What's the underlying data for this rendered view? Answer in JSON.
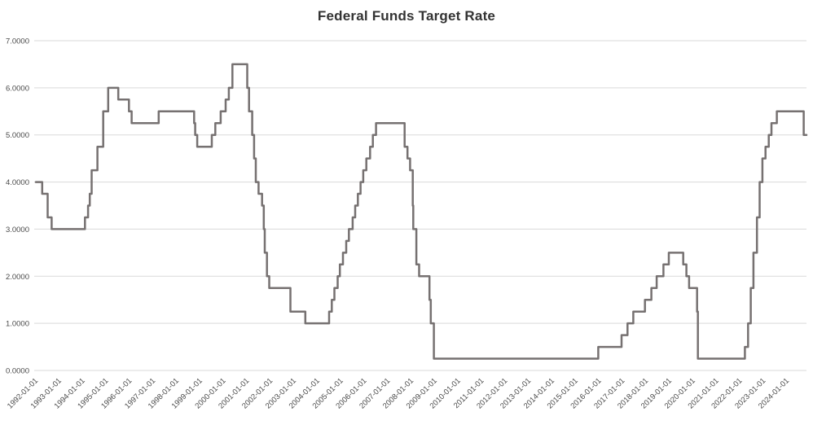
{
  "chart_data": {
    "type": "line",
    "title": "Federal Funds Target Rate",
    "xlabel": "",
    "ylabel": "",
    "grid": "horizontal",
    "legend": "none",
    "x_start": "1992-01-01",
    "x_end": "2024-11-01",
    "y_min": 0,
    "y_max": 7,
    "y_tick_labels": [
      "0.0000",
      "1.0000",
      "2.0000",
      "3.0000",
      "4.0000",
      "5.0000",
      "6.0000",
      "7.0000"
    ],
    "x_tick_labels": [
      "1992-01-01",
      "1993-01-01",
      "1994-01-01",
      "1995-01-01",
      "1996-01-01",
      "1997-01-01",
      "1998-01-01",
      "1999-01-01",
      "2000-01-01",
      "2001-01-01",
      "2002-01-01",
      "2003-01-01",
      "2004-01-01",
      "2005-01-01",
      "2006-01-01",
      "2007-01-01",
      "2008-01-01",
      "2009-01-01",
      "2010-01-01",
      "2011-01-01",
      "2012-01-01",
      "2013-01-01",
      "2014-01-01",
      "2015-01-01",
      "2016-01-01",
      "2017-01-01",
      "2018-01-01",
      "2019-01-01",
      "2020-01-01",
      "2021-01-01",
      "2022-01-01",
      "2023-01-01",
      "2024-01-01"
    ],
    "series": [
      {
        "name": "Federal Funds Target Rate",
        "interpolation": "step-after",
        "points": [
          [
            "1992-01-01",
            4.0
          ],
          [
            "1992-04-09",
            3.75
          ],
          [
            "1992-07-02",
            3.25
          ],
          [
            "1992-09-04",
            3.0
          ],
          [
            "1994-02-04",
            3.25
          ],
          [
            "1994-03-22",
            3.5
          ],
          [
            "1994-04-18",
            3.75
          ],
          [
            "1994-05-17",
            4.25
          ],
          [
            "1994-08-16",
            4.75
          ],
          [
            "1994-11-15",
            5.5
          ],
          [
            "1995-02-01",
            6.0
          ],
          [
            "1995-07-06",
            5.75
          ],
          [
            "1995-12-19",
            5.5
          ],
          [
            "1996-01-31",
            5.25
          ],
          [
            "1997-03-25",
            5.5
          ],
          [
            "1998-09-29",
            5.25
          ],
          [
            "1998-10-15",
            5.0
          ],
          [
            "1998-11-17",
            4.75
          ],
          [
            "1999-06-30",
            5.0
          ],
          [
            "1999-08-24",
            5.25
          ],
          [
            "1999-11-16",
            5.5
          ],
          [
            "2000-02-02",
            5.75
          ],
          [
            "2000-03-21",
            6.0
          ],
          [
            "2000-05-16",
            6.5
          ],
          [
            "2001-01-03",
            6.0
          ],
          [
            "2001-01-31",
            5.5
          ],
          [
            "2001-03-20",
            5.0
          ],
          [
            "2001-04-18",
            4.5
          ],
          [
            "2001-05-15",
            4.0
          ],
          [
            "2001-06-27",
            3.75
          ],
          [
            "2001-08-21",
            3.5
          ],
          [
            "2001-09-17",
            3.0
          ],
          [
            "2001-10-02",
            2.5
          ],
          [
            "2001-11-06",
            2.0
          ],
          [
            "2001-12-11",
            1.75
          ],
          [
            "2002-11-06",
            1.25
          ],
          [
            "2003-06-25",
            1.0
          ],
          [
            "2004-06-30",
            1.25
          ],
          [
            "2004-08-10",
            1.5
          ],
          [
            "2004-09-21",
            1.75
          ],
          [
            "2004-11-10",
            2.0
          ],
          [
            "2004-12-14",
            2.25
          ],
          [
            "2005-02-02",
            2.5
          ],
          [
            "2005-03-22",
            2.75
          ],
          [
            "2005-05-03",
            3.0
          ],
          [
            "2005-06-30",
            3.25
          ],
          [
            "2005-08-09",
            3.5
          ],
          [
            "2005-09-20",
            3.75
          ],
          [
            "2005-11-01",
            4.0
          ],
          [
            "2005-12-13",
            4.25
          ],
          [
            "2006-01-31",
            4.5
          ],
          [
            "2006-03-28",
            4.75
          ],
          [
            "2006-05-10",
            5.0
          ],
          [
            "2006-06-29",
            5.25
          ],
          [
            "2007-09-18",
            4.75
          ],
          [
            "2007-10-31",
            4.5
          ],
          [
            "2007-12-11",
            4.25
          ],
          [
            "2008-01-22",
            3.5
          ],
          [
            "2008-01-30",
            3.0
          ],
          [
            "2008-03-18",
            2.25
          ],
          [
            "2008-04-30",
            2.0
          ],
          [
            "2008-10-08",
            1.5
          ],
          [
            "2008-10-29",
            1.0
          ],
          [
            "2008-12-16",
            0.25
          ],
          [
            "2015-12-17",
            0.5
          ],
          [
            "2016-12-15",
            0.75
          ],
          [
            "2017-03-16",
            1.0
          ],
          [
            "2017-06-15",
            1.25
          ],
          [
            "2017-12-14",
            1.5
          ],
          [
            "2018-03-22",
            1.75
          ],
          [
            "2018-06-14",
            2.0
          ],
          [
            "2018-09-27",
            2.25
          ],
          [
            "2018-12-20",
            2.5
          ],
          [
            "2019-08-01",
            2.25
          ],
          [
            "2019-09-19",
            2.0
          ],
          [
            "2019-10-31",
            1.75
          ],
          [
            "2020-03-03",
            1.25
          ],
          [
            "2020-03-16",
            0.25
          ],
          [
            "2022-03-17",
            0.5
          ],
          [
            "2022-05-05",
            1.0
          ],
          [
            "2022-06-16",
            1.75
          ],
          [
            "2022-07-28",
            2.5
          ],
          [
            "2022-09-22",
            3.25
          ],
          [
            "2022-11-03",
            4.0
          ],
          [
            "2022-12-15",
            4.5
          ],
          [
            "2023-02-02",
            4.75
          ],
          [
            "2023-03-23",
            5.0
          ],
          [
            "2023-05-04",
            5.25
          ],
          [
            "2023-07-27",
            5.5
          ],
          [
            "2024-09-19",
            5.0
          ]
        ]
      }
    ],
    "colors": {
      "line": "#767171",
      "grid": "#d9d9d9",
      "axis_label": "#4a4a4a",
      "title": "#333333",
      "background": "#ffffff"
    }
  }
}
